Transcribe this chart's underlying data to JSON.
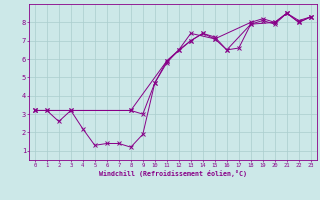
{
  "xlabel": "Windchill (Refroidissement éolien,°C)",
  "bg_color": "#cce8e8",
  "grid_color": "#aacece",
  "line_color": "#880088",
  "xlim": [
    -0.5,
    23.5
  ],
  "ylim": [
    0.5,
    9.0
  ],
  "xticks": [
    0,
    1,
    2,
    3,
    4,
    5,
    6,
    7,
    8,
    9,
    10,
    11,
    12,
    13,
    14,
    15,
    16,
    17,
    18,
    19,
    20,
    21,
    22,
    23
  ],
  "yticks": [
    1,
    2,
    3,
    4,
    5,
    6,
    7,
    8
  ],
  "line1_x": [
    0,
    1,
    2,
    3,
    4,
    5,
    6,
    7,
    8,
    9,
    10,
    11,
    12,
    13,
    14,
    15,
    16,
    17,
    18,
    19,
    20,
    21,
    22,
    23
  ],
  "line1_y": [
    3.2,
    3.2,
    2.6,
    3.2,
    2.2,
    1.3,
    1.4,
    1.4,
    1.2,
    1.9,
    4.7,
    5.9,
    6.5,
    7.0,
    7.4,
    7.2,
    6.5,
    6.6,
    7.9,
    8.1,
    7.9,
    8.5,
    8.0,
    8.3
  ],
  "line2_x": [
    0,
    1,
    3,
    8,
    9,
    10,
    11,
    12,
    13,
    15,
    18,
    19,
    20,
    21,
    22,
    23
  ],
  "line2_y": [
    3.2,
    3.2,
    3.2,
    3.2,
    3.0,
    4.7,
    5.8,
    6.5,
    7.4,
    7.1,
    8.0,
    8.2,
    8.0,
    8.5,
    8.0,
    8.3
  ],
  "line3_x": [
    0,
    8,
    11,
    13,
    14,
    15,
    16,
    18,
    20,
    21,
    22,
    23
  ],
  "line3_y": [
    3.2,
    3.2,
    5.9,
    7.0,
    7.4,
    7.1,
    6.5,
    7.9,
    8.0,
    8.5,
    8.1,
    8.3
  ]
}
